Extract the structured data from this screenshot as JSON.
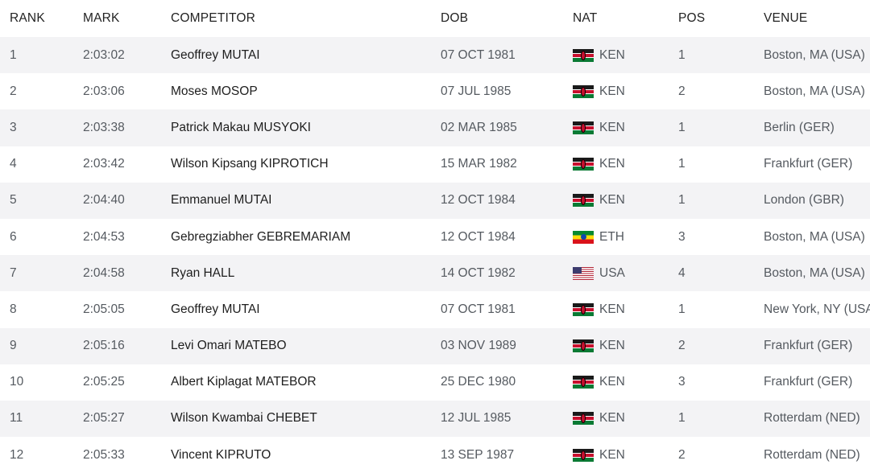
{
  "headers": {
    "rank": "RANK",
    "mark": "MARK",
    "competitor": "COMPETITOR",
    "dob": "DOB",
    "nat": "NAT",
    "pos": "POS",
    "venue": "VENUE"
  },
  "flag_colors": {
    "KEN": [
      "#1a1a1a",
      "#ffffff",
      "#c8102e",
      "#ffffff",
      "#0a7a34"
    ],
    "ETH": [
      "#078930",
      "#fcdd09",
      "#da121a"
    ],
    "USA": [
      "#b22234",
      "#ffffff",
      "#3c3b6e"
    ]
  },
  "rows": [
    {
      "rank": "1",
      "mark": "2:03:02",
      "competitor": "Geoffrey MUTAI",
      "dob": "07 OCT 1981",
      "nat": "KEN",
      "pos": "1",
      "venue": "Boston, MA (USA)"
    },
    {
      "rank": "2",
      "mark": "2:03:06",
      "competitor": "Moses MOSOP",
      "dob": "07 JUL 1985",
      "nat": "KEN",
      "pos": "2",
      "venue": "Boston, MA (USA)"
    },
    {
      "rank": "3",
      "mark": "2:03:38",
      "competitor": "Patrick Makau MUSYOKI",
      "dob": "02 MAR 1985",
      "nat": "KEN",
      "pos": "1",
      "venue": "Berlin (GER)"
    },
    {
      "rank": "4",
      "mark": "2:03:42",
      "competitor": "Wilson Kipsang KIPROTICH",
      "dob": "15 MAR 1982",
      "nat": "KEN",
      "pos": "1",
      "venue": "Frankfurt (GER)"
    },
    {
      "rank": "5",
      "mark": "2:04:40",
      "competitor": "Emmanuel MUTAI",
      "dob": "12 OCT 1984",
      "nat": "KEN",
      "pos": "1",
      "venue": "London (GBR)"
    },
    {
      "rank": "6",
      "mark": "2:04:53",
      "competitor": "Gebregziabher GEBREMARIAM",
      "dob": "12 OCT 1984",
      "nat": "ETH",
      "pos": "3",
      "venue": "Boston, MA (USA)"
    },
    {
      "rank": "7",
      "mark": "2:04:58",
      "competitor": "Ryan HALL",
      "dob": "14 OCT 1982",
      "nat": "USA",
      "pos": "4",
      "venue": "Boston, MA (USA)"
    },
    {
      "rank": "8",
      "mark": "2:05:05",
      "competitor": "Geoffrey MUTAI",
      "dob": "07 OCT 1981",
      "nat": "KEN",
      "pos": "1",
      "venue": "New York, NY (USA)"
    },
    {
      "rank": "9",
      "mark": "2:05:16",
      "competitor": "Levi Omari MATEBO",
      "dob": "03 NOV 1989",
      "nat": "KEN",
      "pos": "2",
      "venue": "Frankfurt (GER)"
    },
    {
      "rank": "10",
      "mark": "2:05:25",
      "competitor": "Albert Kiplagat MATEBOR",
      "dob": "25 DEC 1980",
      "nat": "KEN",
      "pos": "3",
      "venue": "Frankfurt (GER)"
    },
    {
      "rank": "11",
      "mark": "2:05:27",
      "competitor": "Wilson Kwambai CHEBET",
      "dob": "12 JUL 1985",
      "nat": "KEN",
      "pos": "1",
      "venue": "Rotterdam (NED)"
    },
    {
      "rank": "12",
      "mark": "2:05:33",
      "competitor": "Vincent KIPRUTO",
      "dob": "13 SEP 1987",
      "nat": "KEN",
      "pos": "2",
      "venue": "Rotterdam (NED)"
    }
  ]
}
